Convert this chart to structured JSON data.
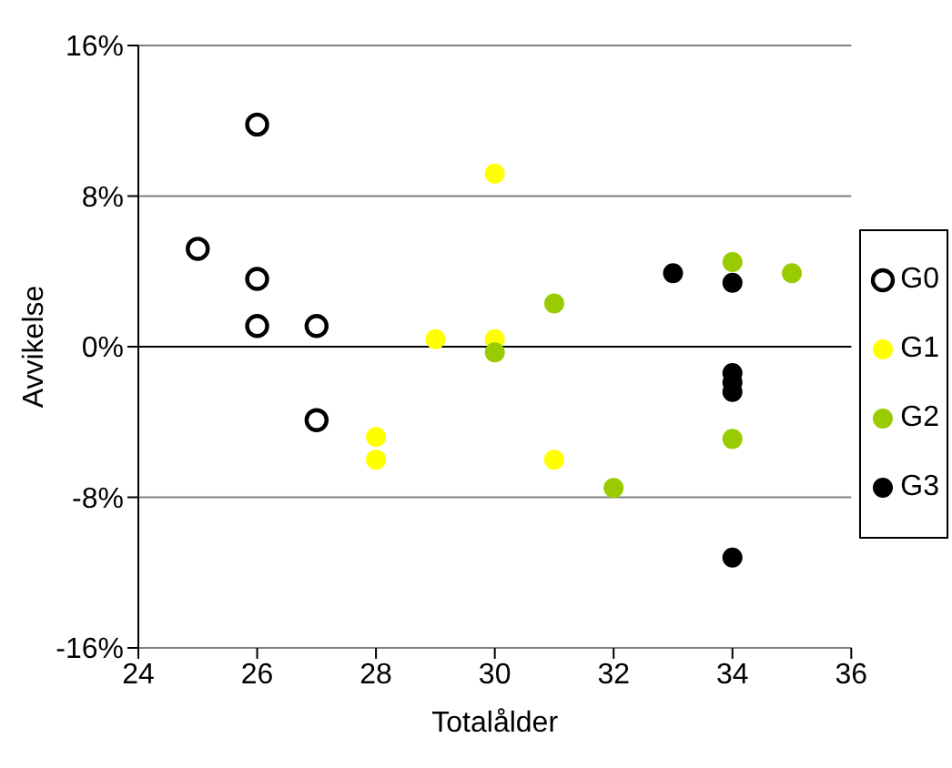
{
  "chart_data": {
    "type": "scatter",
    "xlabel": "Totalålder",
    "ylabel": "Avvikelse",
    "xlim": [
      24,
      36
    ],
    "xticks": [
      24,
      26,
      28,
      30,
      32,
      34,
      36
    ],
    "ylim": [
      -16,
      16
    ],
    "yticks": [
      {
        "value": -16,
        "label": "-16%"
      },
      {
        "value": -8,
        "label": "-8%"
      },
      {
        "value": 0,
        "label": "0%"
      },
      {
        "value": 8,
        "label": "8%"
      },
      {
        "value": 16,
        "label": "16%"
      }
    ],
    "grid": "y",
    "legend": "right",
    "marker": "circle",
    "series": [
      {
        "name": "G0",
        "color": "#ffffff",
        "x": [
          26,
          25,
          26,
          26,
          27,
          27
        ],
        "values": [
          11.8,
          5.2,
          3.6,
          1.1,
          1.1,
          -3.9
        ]
      },
      {
        "name": "G1",
        "color": "#ffff00",
        "x": [
          30,
          29,
          30,
          28,
          28,
          31
        ],
        "values": [
          9.2,
          0.4,
          0.4,
          -4.8,
          -6.0,
          -6.0
        ]
      },
      {
        "name": "G2",
        "color": "#99cc00",
        "x": [
          30,
          31,
          32,
          34,
          35,
          34
        ],
        "values": [
          -0.3,
          2.3,
          -7.5,
          4.5,
          3.9,
          -4.9
        ]
      },
      {
        "name": "G3",
        "color": "#000000",
        "x": [
          33,
          34,
          34,
          34,
          34,
          34
        ],
        "values": [
          3.9,
          3.4,
          -1.4,
          -1.9,
          -2.4,
          -11.2
        ]
      }
    ]
  }
}
